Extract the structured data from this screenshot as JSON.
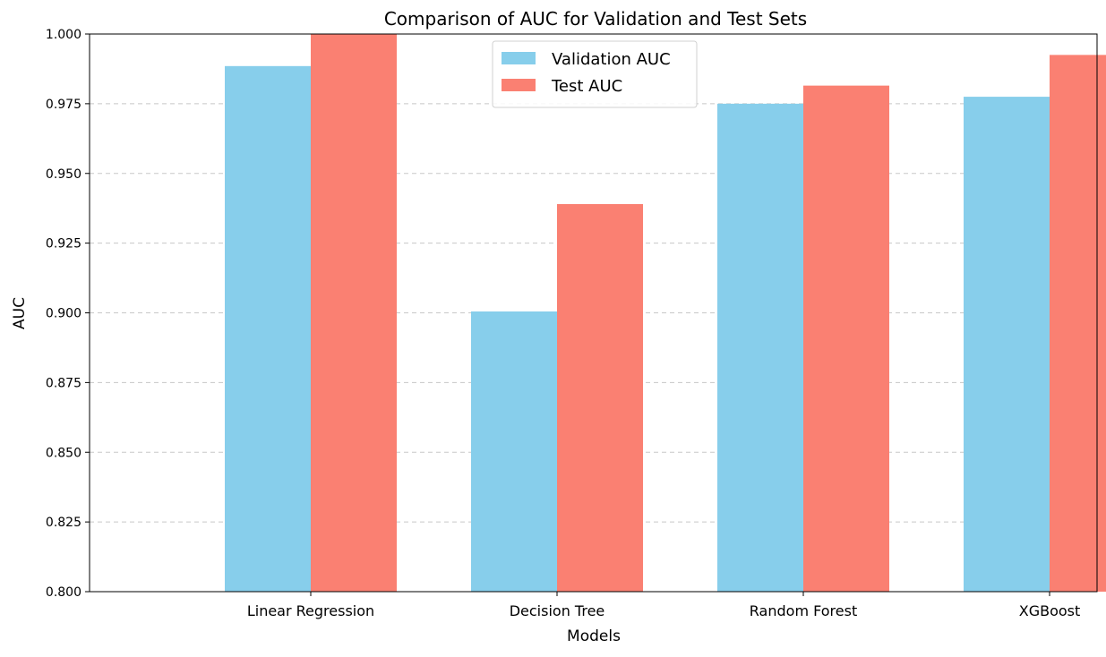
{
  "chart_data": {
    "type": "bar",
    "title": "Comparison of AUC for Validation and Test Sets",
    "xlabel": "Models",
    "ylabel": "AUC",
    "categories": [
      "Linear Regression",
      "Decision Tree",
      "Random Forest",
      "XGBoost"
    ],
    "series": [
      {
        "name": "Validation AUC",
        "color": "#87ceeb",
        "values": [
          0.9885,
          0.9005,
          0.975,
          0.9775
        ]
      },
      {
        "name": "Test AUC",
        "color": "#fa8072",
        "values": [
          1.0,
          0.939,
          0.9815,
          0.9925
        ]
      }
    ],
    "ylim": [
      0.8,
      1.0
    ],
    "yticks": [
      "0.800",
      "0.825",
      "0.850",
      "0.875",
      "0.900",
      "0.925",
      "0.950",
      "0.975",
      "1.000"
    ],
    "grid": "y-dashed",
    "legend": "top-center"
  }
}
